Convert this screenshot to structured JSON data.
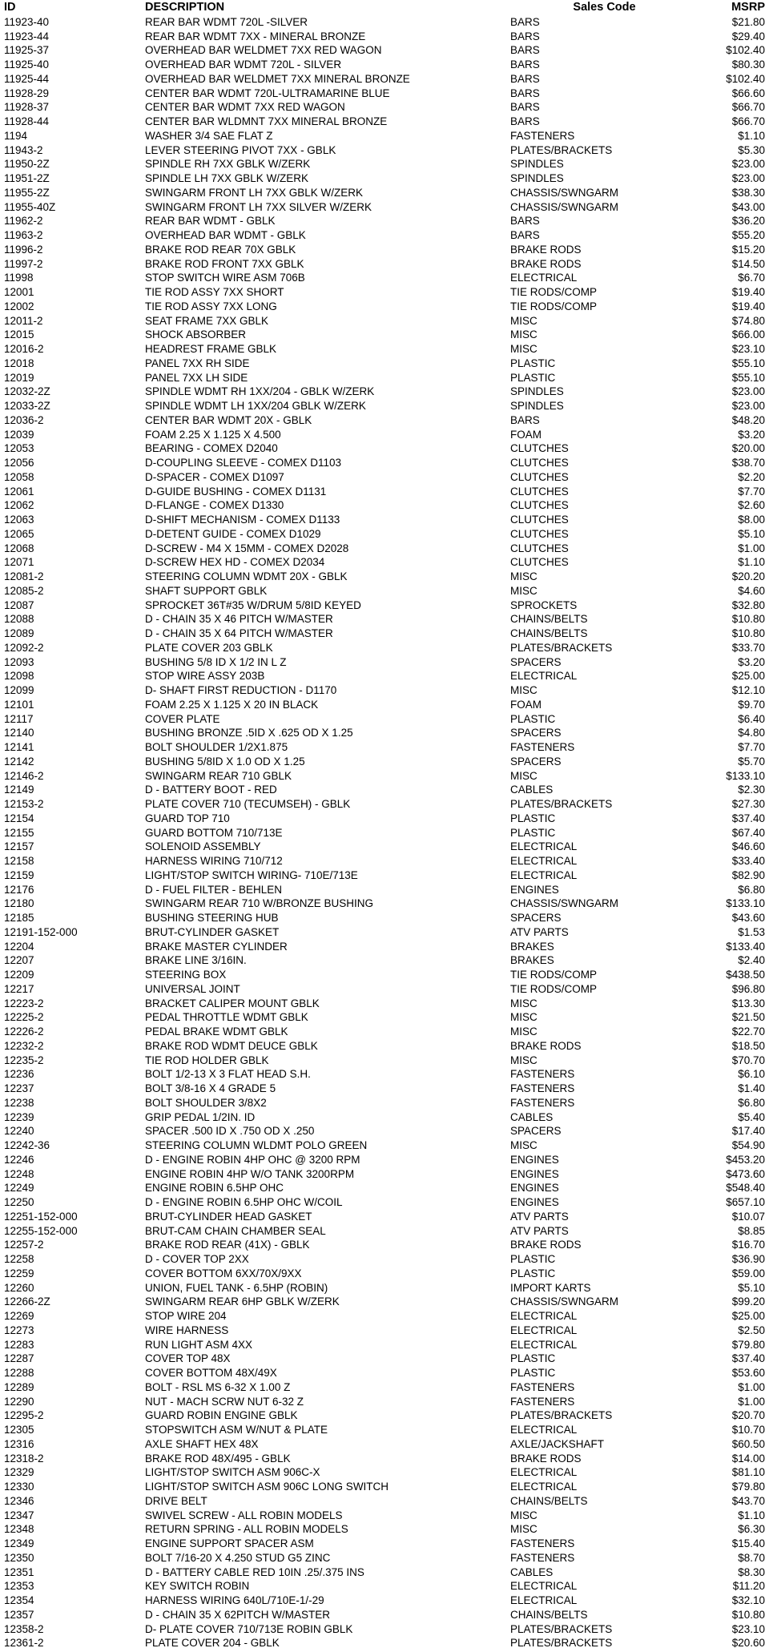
{
  "colors": {
    "page_background": "#ffffff",
    "text": "#000000"
  },
  "table": {
    "headers": {
      "id": "ID",
      "description": "DESCRIPTION",
      "sales_code": "Sales Code",
      "msrp": "MSRP"
    },
    "rows": [
      {
        "id": "11923-40",
        "description": "REAR BAR WDMT 720L -SILVER",
        "sales_code": "BARS",
        "msrp": "$21.80"
      },
      {
        "id": "11923-44",
        "description": "REAR BAR WDMT 7XX - MINERAL BRONZE",
        "sales_code": "BARS",
        "msrp": "$29.40"
      },
      {
        "id": "11925-37",
        "description": "OVERHEAD BAR WELDMET 7XX RED WAGON",
        "sales_code": "BARS",
        "msrp": "$102.40"
      },
      {
        "id": "11925-40",
        "description": "OVERHEAD BAR WDMT 720L - SILVER",
        "sales_code": "BARS",
        "msrp": "$80.30"
      },
      {
        "id": "11925-44",
        "description": "OVERHEAD BAR WELDMET 7XX MINERAL BRONZE",
        "sales_code": "BARS",
        "msrp": "$102.40"
      },
      {
        "id": "11928-29",
        "description": "CENTER BAR WDMT 720L-ULTRAMARINE BLUE",
        "sales_code": "BARS",
        "msrp": "$66.60"
      },
      {
        "id": "11928-37",
        "description": "CENTER BAR WDMT 7XX RED WAGON",
        "sales_code": "BARS",
        "msrp": "$66.70"
      },
      {
        "id": "11928-44",
        "description": "CENTER BAR WLDMNT 7XX MINERAL BRONZE",
        "sales_code": "BARS",
        "msrp": "$66.70"
      },
      {
        "id": "1194",
        "description": "WASHER 3/4 SAE FLAT Z",
        "sales_code": "FASTENERS",
        "msrp": "$1.10"
      },
      {
        "id": "11943-2",
        "description": "LEVER STEERING PIVOT 7XX - GBLK",
        "sales_code": "PLATES/BRACKETS",
        "msrp": "$5.30"
      },
      {
        "id": "11950-2Z",
        "description": "SPINDLE RH 7XX GBLK W/ZERK",
        "sales_code": "SPINDLES",
        "msrp": "$23.00"
      },
      {
        "id": "11951-2Z",
        "description": "SPINDLE LH 7XX GBLK W/ZERK",
        "sales_code": "SPINDLES",
        "msrp": "$23.00"
      },
      {
        "id": "11955-2Z",
        "description": "SWINGARM FRONT LH 7XX GBLK W/ZERK",
        "sales_code": "CHASSIS/SWNGARM",
        "msrp": "$38.30"
      },
      {
        "id": "11955-40Z",
        "description": "SWINGARM FRONT LH 7XX SILVER W/ZERK",
        "sales_code": "CHASSIS/SWNGARM",
        "msrp": "$43.00"
      },
      {
        "id": "11962-2",
        "description": "REAR BAR WDMT - GBLK",
        "sales_code": "BARS",
        "msrp": "$36.20"
      },
      {
        "id": "11963-2",
        "description": "OVERHEAD BAR WDMT - GBLK",
        "sales_code": "BARS",
        "msrp": "$55.20"
      },
      {
        "id": "11996-2",
        "description": "BRAKE ROD REAR 70X GBLK",
        "sales_code": "BRAKE RODS",
        "msrp": "$15.20"
      },
      {
        "id": "11997-2",
        "description": "BRAKE ROD FRONT 7XX GBLK",
        "sales_code": "BRAKE RODS",
        "msrp": "$14.50"
      },
      {
        "id": "11998",
        "description": "STOP SWITCH WIRE ASM 706B",
        "sales_code": "ELECTRICAL",
        "msrp": "$6.70"
      },
      {
        "id": "12001",
        "description": "TIE ROD ASSY 7XX SHORT",
        "sales_code": "TIE RODS/COMP",
        "msrp": "$19.40"
      },
      {
        "id": "12002",
        "description": "TIE ROD ASSY 7XX LONG",
        "sales_code": "TIE RODS/COMP",
        "msrp": "$19.40"
      },
      {
        "id": "12011-2",
        "description": "SEAT FRAME 7XX GBLK",
        "sales_code": "MISC",
        "msrp": "$74.80"
      },
      {
        "id": "12015",
        "description": "SHOCK ABSORBER",
        "sales_code": "MISC",
        "msrp": "$66.00"
      },
      {
        "id": "12016-2",
        "description": "HEADREST FRAME GBLK",
        "sales_code": "MISC",
        "msrp": "$23.10"
      },
      {
        "id": "12018",
        "description": "PANEL 7XX RH SIDE",
        "sales_code": "PLASTIC",
        "msrp": "$55.10"
      },
      {
        "id": "12019",
        "description": "PANEL 7XX LH SIDE",
        "sales_code": "PLASTIC",
        "msrp": "$55.10"
      },
      {
        "id": "12032-2Z",
        "description": "SPINDLE WDMT RH 1XX/204 - GBLK W/ZERK",
        "sales_code": "SPINDLES",
        "msrp": "$23.00"
      },
      {
        "id": "12033-2Z",
        "description": "SPINDLE WDMT LH 1XX/204 GBLK W/ZERK",
        "sales_code": "SPINDLES",
        "msrp": "$23.00"
      },
      {
        "id": "12036-2",
        "description": "CENTER BAR WDMT 20X - GBLK",
        "sales_code": "BARS",
        "msrp": "$48.20"
      },
      {
        "id": "12039",
        "description": "FOAM 2.25 X 1.125 X 4.500",
        "sales_code": "FOAM",
        "msrp": "$3.20"
      },
      {
        "id": "12053",
        "description": "BEARING - COMEX D2040",
        "sales_code": "CLUTCHES",
        "msrp": "$20.00"
      },
      {
        "id": "12056",
        "description": "D-COUPLING SLEEVE - COMEX D1103",
        "sales_code": "CLUTCHES",
        "msrp": "$38.70"
      },
      {
        "id": "12058",
        "description": "D-SPACER - COMEX D1097",
        "sales_code": "CLUTCHES",
        "msrp": "$2.20"
      },
      {
        "id": "12061",
        "description": "D-GUIDE BUSHING - COMEX D1131",
        "sales_code": "CLUTCHES",
        "msrp": "$7.70"
      },
      {
        "id": "12062",
        "description": "D-FLANGE - COMEX D1330",
        "sales_code": "CLUTCHES",
        "msrp": "$2.60"
      },
      {
        "id": "12063",
        "description": "D-SHIFT MECHANISM - COMEX D1133",
        "sales_code": "CLUTCHES",
        "msrp": "$8.00"
      },
      {
        "id": "12065",
        "description": "D-DETENT GUIDE - COMEX D1029",
        "sales_code": "CLUTCHES",
        "msrp": "$5.10"
      },
      {
        "id": "12068",
        "description": "D-SCREW - M4 X 15MM - COMEX D2028",
        "sales_code": "CLUTCHES",
        "msrp": "$1.00"
      },
      {
        "id": "12071",
        "description": "D-SCREW HEX HD - COMEX D2034",
        "sales_code": "CLUTCHES",
        "msrp": "$1.10"
      },
      {
        "id": "12081-2",
        "description": "STEERING COLUMN WDMT 20X - GBLK",
        "sales_code": "MISC",
        "msrp": "$20.20"
      },
      {
        "id": "12085-2",
        "description": "SHAFT SUPPORT GBLK",
        "sales_code": "MISC",
        "msrp": "$4.60"
      },
      {
        "id": "12087",
        "description": "SPROCKET 36T#35 W/DRUM 5/8ID KEYED",
        "sales_code": "SPROCKETS",
        "msrp": "$32.80"
      },
      {
        "id": "12088",
        "description": "D - CHAIN 35 X 46 PITCH W/MASTER",
        "sales_code": "CHAINS/BELTS",
        "msrp": "$10.80"
      },
      {
        "id": "12089",
        "description": "D - CHAIN 35 X 64 PITCH W/MASTER",
        "sales_code": "CHAINS/BELTS",
        "msrp": "$10.80"
      },
      {
        "id": "12092-2",
        "description": "PLATE COVER 203 GBLK",
        "sales_code": "PLATES/BRACKETS",
        "msrp": "$33.70"
      },
      {
        "id": "12093",
        "description": "BUSHING 5/8 ID X 1/2 IN L Z",
        "sales_code": "SPACERS",
        "msrp": "$3.20"
      },
      {
        "id": "12098",
        "description": "STOP WIRE ASSY 203B",
        "sales_code": "ELECTRICAL",
        "msrp": "$25.00"
      },
      {
        "id": "12099",
        "description": "D- SHAFT FIRST REDUCTION - D1170",
        "sales_code": "MISC",
        "msrp": "$12.10"
      },
      {
        "id": "12101",
        "description": "FOAM 2.25 X 1.125 X 20 IN BLACK",
        "sales_code": "FOAM",
        "msrp": "$9.70"
      },
      {
        "id": "12117",
        "description": "COVER PLATE",
        "sales_code": "PLASTIC",
        "msrp": "$6.40"
      },
      {
        "id": "12140",
        "description": "BUSHING BRONZE .5ID X .625 OD X 1.25",
        "sales_code": "SPACERS",
        "msrp": "$4.80"
      },
      {
        "id": "12141",
        "description": "BOLT SHOULDER 1/2X1.875",
        "sales_code": "FASTENERS",
        "msrp": "$7.70"
      },
      {
        "id": "12142",
        "description": "BUSHING 5/8ID X 1.0 OD X 1.25",
        "sales_code": "SPACERS",
        "msrp": "$5.70"
      },
      {
        "id": "12146-2",
        "description": "SWINGARM REAR 710 GBLK",
        "sales_code": "MISC",
        "msrp": "$133.10"
      },
      {
        "id": "12149",
        "description": "D - BATTERY BOOT - RED",
        "sales_code": "CABLES",
        "msrp": "$2.30"
      },
      {
        "id": "12153-2",
        "description": "PLATE COVER 710 (TECUMSEH) -  GBLK",
        "sales_code": "PLATES/BRACKETS",
        "msrp": "$27.30"
      },
      {
        "id": "12154",
        "description": "GUARD TOP 710",
        "sales_code": "PLASTIC",
        "msrp": "$37.40"
      },
      {
        "id": "12155",
        "description": "GUARD BOTTOM 710/713E",
        "sales_code": "PLASTIC",
        "msrp": "$67.40"
      },
      {
        "id": "12157",
        "description": "SOLENOID ASSEMBLY",
        "sales_code": "ELECTRICAL",
        "msrp": "$46.60"
      },
      {
        "id": "12158",
        "description": "HARNESS WIRING 710/712",
        "sales_code": "ELECTRICAL",
        "msrp": "$33.40"
      },
      {
        "id": "12159",
        "description": "LIGHT/STOP SWITCH WIRING- 710E/713E",
        "sales_code": "ELECTRICAL",
        "msrp": "$82.90"
      },
      {
        "id": "12176",
        "description": "D - FUEL FILTER - BEHLEN",
        "sales_code": "ENGINES",
        "msrp": "$6.80"
      },
      {
        "id": "12180",
        "description": "SWINGARM REAR 710 W/BRONZE BUSHING",
        "sales_code": "CHASSIS/SWNGARM",
        "msrp": "$133.10"
      },
      {
        "id": "12185",
        "description": "BUSHING STEERING HUB",
        "sales_code": "SPACERS",
        "msrp": "$43.60"
      },
      {
        "id": "12191-152-000",
        "description": "BRUT-CYLINDER GASKET",
        "sales_code": "ATV PARTS",
        "msrp": "$1.53"
      },
      {
        "id": "12204",
        "description": "BRAKE MASTER CYLINDER",
        "sales_code": "BRAKES",
        "msrp": "$133.40"
      },
      {
        "id": "12207",
        "description": "BRAKE LINE 3/16IN.",
        "sales_code": "BRAKES",
        "msrp": "$2.40"
      },
      {
        "id": "12209",
        "description": "STEERING BOX",
        "sales_code": "TIE RODS/COMP",
        "msrp": "$438.50"
      },
      {
        "id": "12217",
        "description": "UNIVERSAL JOINT",
        "sales_code": "TIE RODS/COMP",
        "msrp": "$96.80"
      },
      {
        "id": "12223-2",
        "description": "BRACKET CALIPER MOUNT GBLK",
        "sales_code": "MISC",
        "msrp": "$13.30"
      },
      {
        "id": "12225-2",
        "description": "PEDAL THROTTLE WDMT GBLK",
        "sales_code": "MISC",
        "msrp": "$21.50"
      },
      {
        "id": "12226-2",
        "description": "PEDAL BRAKE WDMT GBLK",
        "sales_code": "MISC",
        "msrp": "$22.70"
      },
      {
        "id": "12232-2",
        "description": "BRAKE ROD WDMT DEUCE GBLK",
        "sales_code": "BRAKE RODS",
        "msrp": "$18.50"
      },
      {
        "id": "12235-2",
        "description": "TIE ROD HOLDER GBLK",
        "sales_code": "MISC",
        "msrp": "$70.70"
      },
      {
        "id": "12236",
        "description": "BOLT 1/2-13 X 3 FLAT HEAD S.H.",
        "sales_code": "FASTENERS",
        "msrp": "$6.10"
      },
      {
        "id": "12237",
        "description": "BOLT 3/8-16 X 4 GRADE 5",
        "sales_code": "FASTENERS",
        "msrp": "$1.40"
      },
      {
        "id": "12238",
        "description": "BOLT SHOULDER 3/8X2",
        "sales_code": "FASTENERS",
        "msrp": "$6.80"
      },
      {
        "id": "12239",
        "description": "GRIP PEDAL 1/2IN. ID",
        "sales_code": "CABLES",
        "msrp": "$5.40"
      },
      {
        "id": "12240",
        "description": "SPACER .500 ID X .750 OD X .250",
        "sales_code": "SPACERS",
        "msrp": "$17.40"
      },
      {
        "id": "12242-36",
        "description": "STEERING COLUMN WLDMT POLO GREEN",
        "sales_code": "MISC",
        "msrp": "$54.90"
      },
      {
        "id": "12246",
        "description": "D - ENGINE ROBIN 4HP OHC @ 3200 RPM",
        "sales_code": "ENGINES",
        "msrp": "$453.20"
      },
      {
        "id": "12248",
        "description": "ENGINE ROBIN 4HP W/O TANK 3200RPM",
        "sales_code": "ENGINES",
        "msrp": "$473.60"
      },
      {
        "id": "12249",
        "description": "ENGINE ROBIN 6.5HP OHC",
        "sales_code": "ENGINES",
        "msrp": "$548.40"
      },
      {
        "id": "12250",
        "description": "D - ENGINE ROBIN 6.5HP OHC W/COIL",
        "sales_code": "ENGINES",
        "msrp": "$657.10"
      },
      {
        "id": "12251-152-000",
        "description": "BRUT-CYLINDER HEAD GASKET",
        "sales_code": "ATV PARTS",
        "msrp": "$10.07"
      },
      {
        "id": "12255-152-000",
        "description": "BRUT-CAM CHAIN CHAMBER SEAL",
        "sales_code": "ATV PARTS",
        "msrp": "$8.85"
      },
      {
        "id": "12257-2",
        "description": "BRAKE ROD REAR (41X) - GBLK",
        "sales_code": "BRAKE RODS",
        "msrp": "$16.70"
      },
      {
        "id": "12258",
        "description": "D - COVER TOP 2XX",
        "sales_code": "PLASTIC",
        "msrp": "$36.90"
      },
      {
        "id": "12259",
        "description": "COVER BOTTOM 6XX/70X/9XX",
        "sales_code": "PLASTIC",
        "msrp": "$59.00"
      },
      {
        "id": "12260",
        "description": "UNION, FUEL TANK - 6.5HP (ROBIN)",
        "sales_code": "IMPORT KARTS",
        "msrp": "$5.10"
      },
      {
        "id": "12266-2Z",
        "description": "SWINGARM REAR 6HP GBLK W/ZERK",
        "sales_code": "CHASSIS/SWNGARM",
        "msrp": "$99.20"
      },
      {
        "id": "12269",
        "description": "STOP WIRE 204",
        "sales_code": "ELECTRICAL",
        "msrp": "$25.00"
      },
      {
        "id": "12273",
        "description": "WIRE HARNESS",
        "sales_code": "ELECTRICAL",
        "msrp": "$2.50"
      },
      {
        "id": "12283",
        "description": "RUN LIGHT ASM 4XX",
        "sales_code": "ELECTRICAL",
        "msrp": "$79.80"
      },
      {
        "id": "12287",
        "description": "COVER TOP 48X",
        "sales_code": "PLASTIC",
        "msrp": "$37.40"
      },
      {
        "id": "12288",
        "description": "COVER BOTTOM 48X/49X",
        "sales_code": "PLASTIC",
        "msrp": "$53.60"
      },
      {
        "id": "12289",
        "description": "BOLT - RSL MS 6-32 X 1.00 Z",
        "sales_code": "FASTENERS",
        "msrp": "$1.00"
      },
      {
        "id": "12290",
        "description": "NUT - MACH SCRW NUT 6-32 Z",
        "sales_code": "FASTENERS",
        "msrp": "$1.00"
      },
      {
        "id": "12295-2",
        "description": "GUARD ROBIN ENGINE GBLK",
        "sales_code": "PLATES/BRACKETS",
        "msrp": "$20.70"
      },
      {
        "id": "12305",
        "description": "STOPSWITCH ASM W/NUT & PLATE",
        "sales_code": "ELECTRICAL",
        "msrp": "$10.70"
      },
      {
        "id": "12316",
        "description": "AXLE SHAFT HEX 48X",
        "sales_code": "AXLE/JACKSHAFT",
        "msrp": "$60.50"
      },
      {
        "id": "12318-2",
        "description": "BRAKE ROD 48X/495 - GBLK",
        "sales_code": "BRAKE RODS",
        "msrp": "$14.00"
      },
      {
        "id": "12329",
        "description": "LIGHT/STOP SWITCH ASM 906C-X",
        "sales_code": "ELECTRICAL",
        "msrp": "$81.10"
      },
      {
        "id": "12330",
        "description": "LIGHT/STOP SWITCH ASM 906C LONG SWITCH",
        "sales_code": "ELECTRICAL",
        "msrp": "$79.80"
      },
      {
        "id": "12346",
        "description": "DRIVE BELT",
        "sales_code": "CHAINS/BELTS",
        "msrp": "$43.70"
      },
      {
        "id": "12347",
        "description": "SWIVEL SCREW - ALL ROBIN MODELS",
        "sales_code": "MISC",
        "msrp": "$1.10"
      },
      {
        "id": "12348",
        "description": "RETURN SPRING - ALL ROBIN MODELS",
        "sales_code": "MISC",
        "msrp": "$6.30"
      },
      {
        "id": "12349",
        "description": "ENGINE SUPPORT SPACER ASM",
        "sales_code": "FASTENERS",
        "msrp": "$15.40"
      },
      {
        "id": "12350",
        "description": "BOLT 7/16-20 X 4.250 STUD G5 ZINC",
        "sales_code": "FASTENERS",
        "msrp": "$8.70"
      },
      {
        "id": "12351",
        "description": "D - BATTERY CABLE RED 10IN .25/.375 INS",
        "sales_code": "CABLES",
        "msrp": "$8.30"
      },
      {
        "id": "12353",
        "description": "KEY SWITCH ROBIN",
        "sales_code": "ELECTRICAL",
        "msrp": "$11.20"
      },
      {
        "id": "12354",
        "description": "HARNESS WIRING 640L/710E-1/-29",
        "sales_code": "ELECTRICAL",
        "msrp": "$32.10"
      },
      {
        "id": "12357",
        "description": "D - CHAIN 35 X 62PITCH W/MASTER",
        "sales_code": "CHAINS/BELTS",
        "msrp": "$10.80"
      },
      {
        "id": "12358-2",
        "description": "D- PLATE COVER 710/713E ROBIN GBLK",
        "sales_code": "PLATES/BRACKETS",
        "msrp": "$23.10"
      },
      {
        "id": "12361-2",
        "description": "PLATE COVER 204 - GBLK",
        "sales_code": "PLATES/BRACKETS",
        "msrp": "$20.60"
      }
    ]
  }
}
